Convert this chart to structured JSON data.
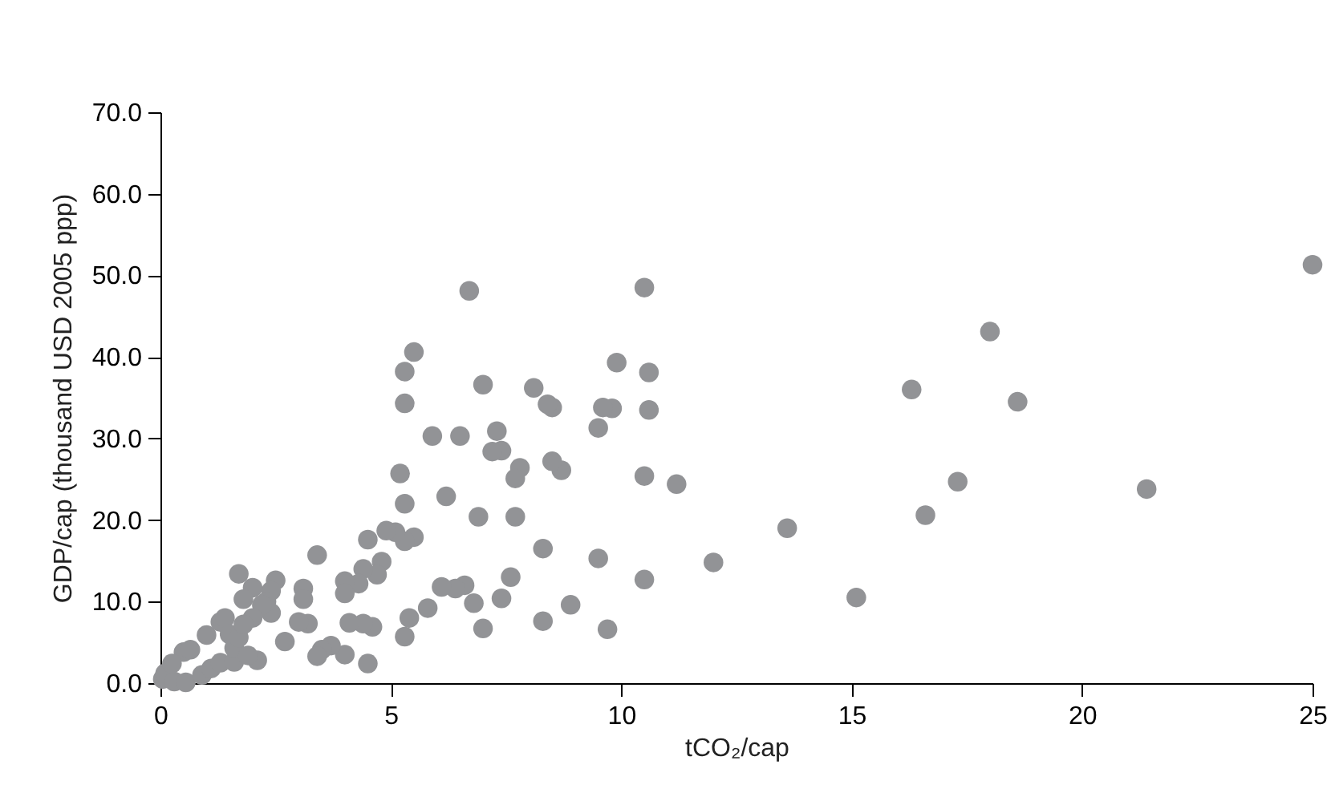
{
  "chart_data": {
    "type": "scatter",
    "xlabel": "tCO₂/cap",
    "ylabel": "GDP/cap (thousand USD 2005 ppp)",
    "xlim": [
      0,
      25
    ],
    "xticks": [
      0,
      5,
      10,
      15,
      20,
      25
    ],
    "ylim": [
      0,
      70
    ],
    "yticks": [
      {
        "value": 0,
        "label": "0.0"
      },
      {
        "value": 10,
        "label": "10.0"
      },
      {
        "value": 20,
        "label": "20.0"
      },
      {
        "value": 30,
        "label": "30.0"
      },
      {
        "value": 40,
        "label": "40.0"
      },
      {
        "value": 50,
        "label": "50.0"
      },
      {
        "value": 60,
        "label": "60.0"
      },
      {
        "value": 70,
        "label": "70.0"
      }
    ],
    "grid": false,
    "marker": "circle",
    "series": [
      {
        "color": "#929396",
        "x": [
          25,
          21.4,
          18.6,
          18.0,
          17.3,
          16.6,
          16.3,
          15.1,
          13.6,
          12.0,
          11.2,
          10.6,
          10.6,
          10.5,
          10.5,
          10.5,
          9.9,
          9.8,
          9.6,
          9.5,
          9.5,
          9.7,
          8.9,
          8.7,
          8.5,
          8.5,
          8.4,
          8.3,
          8.3,
          8.1,
          7.8,
          7.7,
          7.7,
          7.6,
          7.4,
          7.4,
          7.3,
          7.2,
          7.0,
          7.0,
          6.9,
          6.8,
          6.7,
          6.6,
          6.5,
          6.4,
          6.2,
          6.1,
          5.9,
          5.8,
          5.5,
          5.5,
          5.4,
          5.3,
          5.3,
          5.3,
          5.3,
          5.3,
          5.2,
          5.1,
          4.9,
          4.8,
          4.7,
          4.6,
          4.5,
          4.5,
          4.4,
          4.4,
          4.3,
          4.1,
          4.0,
          4.0,
          4.0,
          3.7,
          3.5,
          3.4,
          3.4,
          3.2,
          3.1,
          3.1,
          3.0,
          2.7,
          2.5,
          2.4,
          2.4,
          2.3,
          2.2,
          2.1,
          2.0,
          1.7,
          1.8,
          2.0,
          0.05,
          0.1,
          0.3,
          0.5,
          0.55,
          0.9,
          1.0,
          1.1,
          1.3,
          1.3,
          1.4,
          1.5,
          1.6,
          1.6,
          1.7,
          1.8,
          1.9,
          0.25,
          0.65
        ],
        "values": [
          51.3,
          23.8,
          34.5,
          43.1,
          24.7,
          20.6,
          36.0,
          10.5,
          19.0,
          14.8,
          24.4,
          38.1,
          33.5,
          48.5,
          25.4,
          12.7,
          39.3,
          33.7,
          33.8,
          31.3,
          15.3,
          6.6,
          9.6,
          26.1,
          27.2,
          33.8,
          34.2,
          16.5,
          7.6,
          36.2,
          26.4,
          25.1,
          20.4,
          13.0,
          10.4,
          28.5,
          30.9,
          28.4,
          36.6,
          6.7,
          20.4,
          9.8,
          48.1,
          12.0,
          30.3,
          11.6,
          22.9,
          11.8,
          30.3,
          9.2,
          40.6,
          17.9,
          8.0,
          38.2,
          34.3,
          22.0,
          17.4,
          5.7,
          25.7,
          18.5,
          18.7,
          14.9,
          13.3,
          6.9,
          17.6,
          2.4,
          7.3,
          14.0,
          12.2,
          7.4,
          12.5,
          3.5,
          11.0,
          4.6,
          4.1,
          15.7,
          3.3,
          7.3,
          11.6,
          10.3,
          7.5,
          5.1,
          12.6,
          11.3,
          8.6,
          10.0,
          9.6,
          2.8,
          11.7,
          13.4,
          10.3,
          8.0,
          0.5,
          1.2,
          0.2,
          3.8,
          0.1,
          1.0,
          5.9,
          1.8,
          2.5,
          7.5,
          8.0,
          6.0,
          2.6,
          4.3,
          5.6,
          7.2,
          3.4,
          2.4,
          4.1
        ]
      }
    ]
  }
}
